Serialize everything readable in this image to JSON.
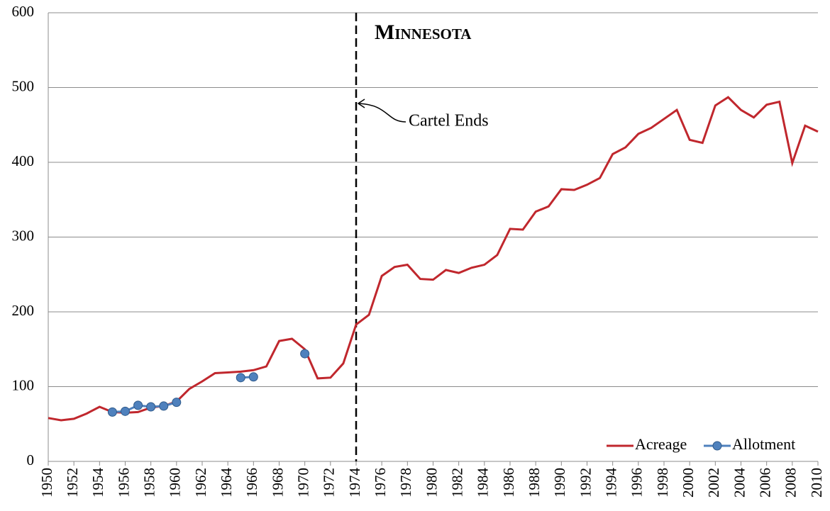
{
  "chart_data": {
    "type": "line",
    "title": "Minnesota",
    "x": [
      1950,
      1951,
      1952,
      1953,
      1954,
      1955,
      1956,
      1957,
      1958,
      1959,
      1960,
      1961,
      1962,
      1963,
      1964,
      1965,
      1966,
      1967,
      1968,
      1969,
      1970,
      1971,
      1972,
      1973,
      1974,
      1975,
      1976,
      1977,
      1978,
      1979,
      1980,
      1981,
      1982,
      1983,
      1984,
      1985,
      1986,
      1987,
      1988,
      1989,
      1990,
      1991,
      1992,
      1993,
      1994,
      1995,
      1996,
      1997,
      1998,
      1999,
      2000,
      2001,
      2002,
      2003,
      2004,
      2005,
      2006,
      2007,
      2008,
      2009,
      2010
    ],
    "series": [
      {
        "name": "Acreage",
        "color": "#c0272d",
        "marker": false,
        "values": [
          58,
          55,
          57,
          64,
          73,
          66,
          65,
          66,
          72,
          74,
          80,
          97,
          107,
          118,
          119,
          120,
          122,
          127,
          161,
          164,
          150,
          111,
          112,
          131,
          183,
          196,
          248,
          260,
          263,
          244,
          243,
          256,
          252,
          259,
          263,
          276,
          311,
          310,
          334,
          341,
          364,
          363,
          370,
          379,
          411,
          420,
          438,
          446,
          458,
          470,
          430,
          426,
          476,
          487,
          470,
          460,
          477,
          481,
          399,
          449,
          441
        ]
      },
      {
        "name": "Allotment",
        "color": "#4f81bd",
        "marker": true,
        "values": [
          null,
          null,
          null,
          null,
          null,
          66,
          67,
          75,
          73,
          74,
          79,
          null,
          null,
          null,
          null,
          112,
          113,
          null,
          null,
          null,
          144,
          null,
          null,
          null,
          null,
          null,
          null,
          null,
          null,
          null,
          null,
          null,
          null,
          null,
          null,
          null,
          null,
          null,
          null,
          null,
          null,
          null,
          null,
          null,
          null,
          null,
          null,
          null,
          null,
          null,
          null,
          null,
          null,
          null,
          null,
          null,
          null,
          null,
          null,
          null,
          null
        ]
      }
    ],
    "xlim": [
      1950,
      2010
    ],
    "xticks": [
      1950,
      1952,
      1954,
      1956,
      1958,
      1960,
      1962,
      1964,
      1966,
      1968,
      1970,
      1972,
      1974,
      1976,
      1978,
      1980,
      1982,
      1984,
      1986,
      1988,
      1990,
      1992,
      1994,
      1996,
      1998,
      2000,
      2002,
      2004,
      2006,
      2008,
      2010
    ],
    "ylim": [
      0,
      600
    ],
    "yticks": [
      0,
      100,
      200,
      300,
      400,
      500,
      600
    ],
    "grid": true,
    "legend": "bottom-right",
    "annotations": [
      {
        "text": "Cartel Ends",
        "x": 1974
      }
    ]
  }
}
